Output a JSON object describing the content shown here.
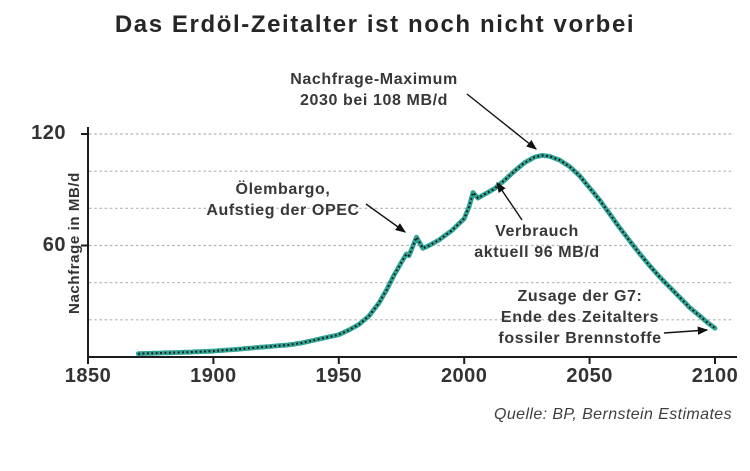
{
  "title": "Das Erdöl-Zeitalter ist noch nicht vorbei",
  "source": "Quelle: BP, Bernstein Estimates",
  "colors": {
    "curve_teal": "#2FA495",
    "curve_dot": "#121212",
    "grid": "#b2b2b2",
    "axis": "#1c1c1c",
    "text": "#383838"
  },
  "chart_data": {
    "type": "line",
    "style": "beaded dotted curve (teal band with dark dots)",
    "title": "Das Erdöl-Zeitalter ist noch nicht vorbei",
    "xlabel": "",
    "ylabel": "Nachfrage in MB/d",
    "xlim": [
      1850,
      2100
    ],
    "ylim": [
      0,
      120
    ],
    "x_ticks": [
      1850,
      1900,
      1950,
      2000,
      2050,
      2100
    ],
    "y_tick_labels": [
      120,
      60
    ],
    "y_gridlines": [
      20,
      40,
      60,
      80,
      100,
      120
    ],
    "grid": "dashed horizontal",
    "legend": "none",
    "peak": {
      "year": 2030,
      "value_mbd": 108
    },
    "current_demand": {
      "value_mbd": 96
    },
    "series": [
      {
        "name": "Nachfrage in MB/d",
        "points": [
          [
            1870,
            1.8
          ],
          [
            1880,
            2.2
          ],
          [
            1890,
            2.6
          ],
          [
            1900,
            3.2
          ],
          [
            1910,
            4.2
          ],
          [
            1920,
            5.4
          ],
          [
            1930,
            6.5
          ],
          [
            1935,
            7.5
          ],
          [
            1940,
            9
          ],
          [
            1945,
            10.5
          ],
          [
            1950,
            12
          ],
          [
            1954,
            14.5
          ],
          [
            1958,
            17.5
          ],
          [
            1962,
            22
          ],
          [
            1966,
            29
          ],
          [
            1969,
            36
          ],
          [
            1972,
            44
          ],
          [
            1975,
            51
          ],
          [
            1977,
            55.5
          ],
          [
            1978,
            54.5
          ],
          [
            1981,
            64.5
          ],
          [
            1983.5,
            58.5
          ],
          [
            1986,
            60
          ],
          [
            1990,
            63
          ],
          [
            1995,
            68
          ],
          [
            2000,
            74.5
          ],
          [
            2002,
            81
          ],
          [
            2003.5,
            88.5
          ],
          [
            2005.5,
            85.5
          ],
          [
            2008,
            87.5
          ],
          [
            2012,
            90.5
          ],
          [
            2016,
            95
          ],
          [
            2020,
            100
          ],
          [
            2024,
            104.5
          ],
          [
            2028,
            107.5
          ],
          [
            2031,
            108.5
          ],
          [
            2034,
            108
          ],
          [
            2038,
            106
          ],
          [
            2042,
            102.5
          ],
          [
            2046,
            97.5
          ],
          [
            2050,
            91
          ],
          [
            2054,
            84.5
          ],
          [
            2058,
            77
          ],
          [
            2062,
            69.5
          ],
          [
            2066,
            62.5
          ],
          [
            2070,
            55.5
          ],
          [
            2074,
            49
          ],
          [
            2078,
            43
          ],
          [
            2082,
            37.5
          ],
          [
            2086,
            32
          ],
          [
            2090,
            26.5
          ],
          [
            2094,
            22
          ],
          [
            2097,
            18.5
          ],
          [
            2100,
            15.5
          ]
        ]
      }
    ],
    "annotations": {
      "max": {
        "lines": [
          "Nachfrage-Maximum",
          "2030 bei 108 MB/d"
        ]
      },
      "opec": {
        "lines": [
          "Ölembargo,",
          "Aufstieg der OPEC"
        ]
      },
      "current": {
        "lines": [
          "Verbrauch",
          "aktuell 96 MB/d"
        ]
      },
      "g7": {
        "lines": [
          "Zusage der G7:",
          "Ende des Zeitalters",
          "fossiler Brennstoffe"
        ]
      }
    }
  }
}
